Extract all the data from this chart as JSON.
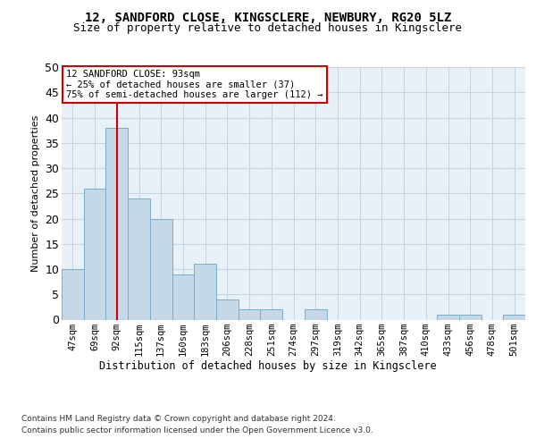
{
  "title": "12, SANDFORD CLOSE, KINGSCLERE, NEWBURY, RG20 5LZ",
  "subtitle": "Size of property relative to detached houses in Kingsclere",
  "xlabel": "Distribution of detached houses by size in Kingsclere",
  "ylabel": "Number of detached properties",
  "categories": [
    "47sqm",
    "69sqm",
    "92sqm",
    "115sqm",
    "137sqm",
    "160sqm",
    "183sqm",
    "206sqm",
    "228sqm",
    "251sqm",
    "274sqm",
    "297sqm",
    "319sqm",
    "342sqm",
    "365sqm",
    "387sqm",
    "410sqm",
    "433sqm",
    "456sqm",
    "478sqm",
    "501sqm"
  ],
  "values": [
    10,
    26,
    38,
    24,
    20,
    9,
    11,
    4,
    2,
    2,
    0,
    2,
    0,
    0,
    0,
    0,
    0,
    1,
    1,
    0,
    1
  ],
  "bar_color": "#c5d8e8",
  "bar_edge_color": "#7aacc8",
  "grid_color": "#c8d4e0",
  "background_color": "#e8f0f8",
  "vline_x": 2,
  "vline_color": "#cc0000",
  "annotation_text": "12 SANDFORD CLOSE: 93sqm\n← 25% of detached houses are smaller (37)\n75% of semi-detached houses are larger (112) →",
  "annotation_box_color": "white",
  "annotation_box_edge": "#cc0000",
  "ylim": [
    0,
    50
  ],
  "yticks": [
    0,
    5,
    10,
    15,
    20,
    25,
    30,
    35,
    40,
    45,
    50
  ],
  "footer_line1": "Contains HM Land Registry data © Crown copyright and database right 2024.",
  "footer_line2": "Contains public sector information licensed under the Open Government Licence v3.0."
}
